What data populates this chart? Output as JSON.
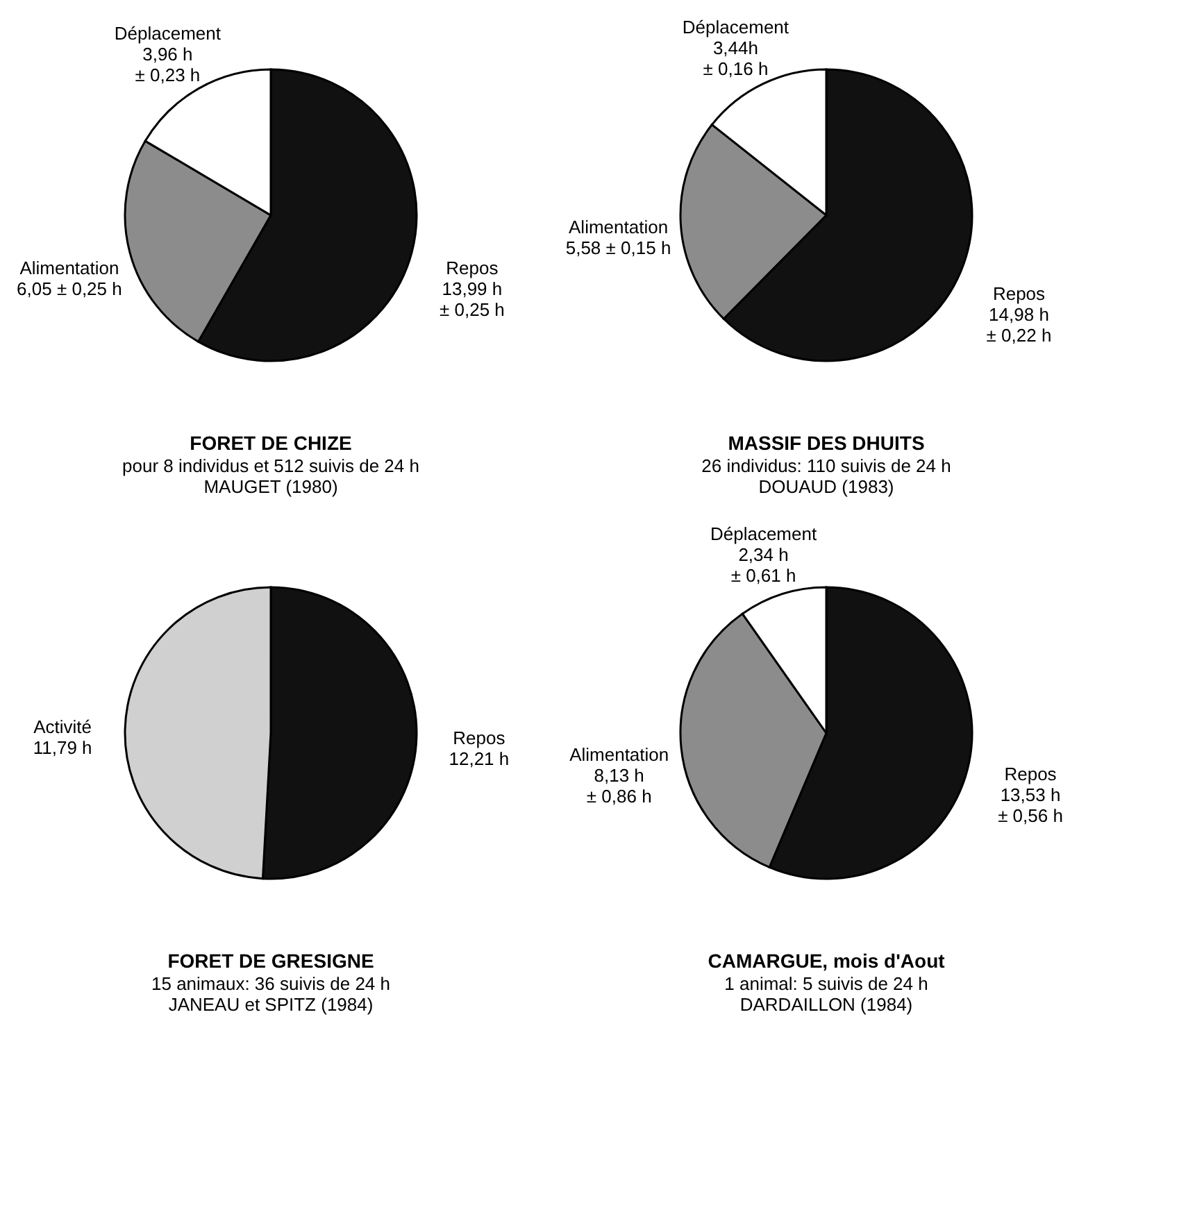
{
  "chart_data": [
    {
      "type": "pie",
      "title": "FORET DE CHIZE",
      "subtitle": "pour 8 individus et 512 suivis de 24 h",
      "annotations": [
        "MAUGET (1980)"
      ],
      "categories": [
        "Repos",
        "Alimentation",
        "Déplacement"
      ],
      "values": [
        13.99,
        6.05,
        3.96
      ],
      "value_labels": [
        "13,99 h\n± 0,25 h",
        "6,05 ± 0,25 h",
        "3,96 h\n± 0,23 h"
      ],
      "colors": [
        "#111111",
        "#8c8c8c",
        "#ffffff"
      ],
      "legend": false
    },
    {
      "type": "pie",
      "title": "MASSIF DES DHUITS",
      "subtitle": "26 individus: 110 suivis de 24 h",
      "annotations": [
        "DOUAUD (1983)"
      ],
      "categories": [
        "Repos",
        "Alimentation",
        "Déplacement"
      ],
      "values": [
        14.98,
        5.58,
        3.44
      ],
      "value_labels": [
        "14,98 h\n± 0,22 h",
        "5,58 ± 0,15 h",
        "3,44h\n± 0,16 h"
      ],
      "colors": [
        "#111111",
        "#8c8c8c",
        "#ffffff"
      ],
      "legend": false
    },
    {
      "type": "pie",
      "title": "FORET DE GRESIGNE",
      "subtitle": "15 animaux: 36 suivis de 24 h",
      "annotations": [
        "JANEAU et SPITZ (1984)"
      ],
      "categories": [
        "Repos",
        "Activité"
      ],
      "values": [
        12.21,
        11.79
      ],
      "value_labels": [
        "12,21 h",
        "11,79 h"
      ],
      "colors": [
        "#111111",
        "#d0d0d0"
      ],
      "legend": false
    },
    {
      "type": "pie",
      "title": "CAMARGUE, mois d'Aout",
      "subtitle": "1 animal: 5 suivis de 24 h",
      "annotations": [
        "DARDAILLON (1984)"
      ],
      "categories": [
        "Repos",
        "Alimentation",
        "Déplacement"
      ],
      "values": [
        13.53,
        8.13,
        2.34
      ],
      "value_labels": [
        "13,53 h\n± 0,56 h",
        "8,13 h\n± 0,86 h",
        "2,34 h\n± 0,61 h"
      ],
      "colors": [
        "#111111",
        "#8c8c8c",
        "#ffffff"
      ],
      "legend": false
    }
  ]
}
